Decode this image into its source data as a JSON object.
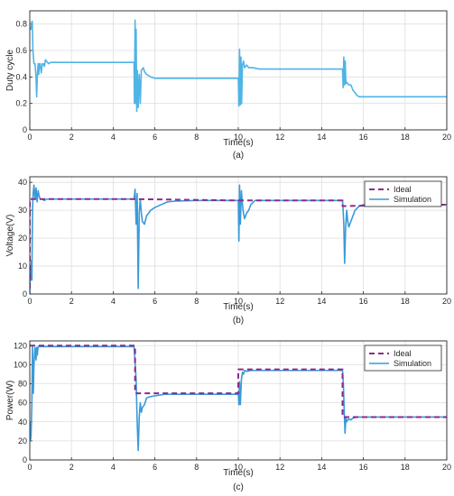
{
  "colors": {
    "simulation": "#3a9ad9",
    "duty": "#4fb4e6",
    "ideal": "#8b2a8b",
    "grid": "#dedede",
    "axis": "#262626"
  },
  "chart_data": [
    {
      "type": "line",
      "caption": "(a)",
      "xlabel": "Time(s)",
      "ylabel": "Duty cycle",
      "xlim": [
        0,
        20
      ],
      "ylim": [
        0,
        0.9
      ],
      "xticks": [
        "0",
        "2",
        "4",
        "6",
        "8",
        "10",
        "12",
        "14",
        "16",
        "18",
        "20"
      ],
      "yticks": [
        "0",
        "0.2",
        "0.4",
        "0.6",
        "0.8"
      ],
      "ytick_values": [
        0,
        0.2,
        0.4,
        0.6,
        0.8
      ],
      "grid": true,
      "legend": null,
      "series": [
        {
          "color_key": "duty",
          "dashed": false,
          "x": [
            0,
            0.05,
            0.1,
            0.12,
            0.15,
            0.2,
            0.25,
            0.3,
            0.33,
            0.36,
            0.4,
            0.43,
            0.46,
            0.5,
            0.55,
            0.6,
            0.65,
            0.7,
            0.75,
            0.8,
            0.9,
            1.0,
            1.2,
            1.5,
            2,
            3,
            4,
            5.0,
            5.02,
            5.05,
            5.08,
            5.1,
            5.13,
            5.16,
            5.2,
            5.25,
            5.3,
            5.35,
            5.4,
            5.45,
            5.5,
            5.6,
            5.7,
            5.8,
            6.0,
            6.3,
            6.5,
            7,
            8,
            9,
            10.0,
            10.03,
            10.06,
            10.1,
            10.13,
            10.16,
            10.2,
            10.25,
            10.3,
            10.4,
            10.5,
            10.7,
            11,
            11.5,
            12,
            13,
            14,
            15.0,
            15.03,
            15.06,
            15.1,
            15.13,
            15.16,
            15.2,
            15.3,
            15.4,
            15.5,
            15.6,
            15.7,
            15.8,
            16,
            16.5,
            17,
            18,
            19,
            20
          ],
          "y": [
            0.76,
            0.76,
            0.82,
            0.82,
            0.6,
            0.5,
            0.5,
            0.4,
            0.25,
            0.4,
            0.5,
            0.42,
            0.5,
            0.5,
            0.43,
            0.5,
            0.5,
            0.48,
            0.53,
            0.52,
            0.5,
            0.51,
            0.51,
            0.51,
            0.51,
            0.51,
            0.51,
            0.51,
            0.2,
            0.83,
            0.2,
            0.76,
            0.14,
            0.45,
            0.17,
            0.42,
            0.2,
            0.45,
            0.46,
            0.47,
            0.44,
            0.42,
            0.41,
            0.4,
            0.39,
            0.39,
            0.39,
            0.39,
            0.39,
            0.39,
            0.39,
            0.18,
            0.61,
            0.19,
            0.55,
            0.2,
            0.49,
            0.52,
            0.47,
            0.49,
            0.47,
            0.47,
            0.46,
            0.46,
            0.46,
            0.46,
            0.46,
            0.46,
            0.32,
            0.55,
            0.34,
            0.52,
            0.35,
            0.36,
            0.34,
            0.34,
            0.3,
            0.28,
            0.26,
            0.25,
            0.25,
            0.25,
            0.25,
            0.25,
            0.25,
            0.25
          ]
        }
      ]
    },
    {
      "type": "line",
      "caption": "(b)",
      "xlabel": "Time(s)",
      "ylabel": "Voltage(V)",
      "xlim": [
        0,
        20
      ],
      "ylim": [
        0,
        42
      ],
      "xticks": [
        "0",
        "2",
        "4",
        "6",
        "8",
        "10",
        "12",
        "14",
        "16",
        "18",
        "20"
      ],
      "yticks": [
        "0",
        "10",
        "20",
        "30",
        "40"
      ],
      "ytick_values": [
        0,
        10,
        20,
        30,
        40
      ],
      "grid": true,
      "legend": {
        "position": "top-right",
        "entries": [
          "Ideal",
          "Simulation"
        ]
      },
      "series": [
        {
          "name": "Ideal",
          "color_key": "ideal",
          "dashed": true,
          "x": [
            0,
            0,
            5.05,
            10,
            10,
            15,
            15,
            20
          ],
          "y": [
            2,
            34,
            34,
            33.5,
            33.5,
            33.5,
            31.5,
            32
          ]
        },
        {
          "name": "Simulation",
          "color_key": "simulation",
          "dashed": false,
          "x": [
            0,
            0.02,
            0.05,
            0.08,
            0.1,
            0.13,
            0.16,
            0.2,
            0.25,
            0.3,
            0.35,
            0.4,
            0.45,
            0.5,
            0.6,
            0.7,
            0.8,
            1.0,
            1.5,
            2,
            3,
            4,
            5.0,
            5.05,
            5.1,
            5.15,
            5.2,
            5.25,
            5.3,
            5.35,
            5.4,
            5.5,
            5.6,
            5.7,
            5.8,
            6.0,
            6.3,
            6.6,
            7,
            8,
            9,
            10.0,
            10.03,
            10.06,
            10.1,
            10.15,
            10.2,
            10.25,
            10.3,
            10.4,
            10.5,
            10.6,
            10.8,
            11,
            12,
            13,
            14,
            15.0,
            15.03,
            15.06,
            15.1,
            15.15,
            15.2,
            15.25,
            15.3,
            15.4,
            15.5,
            15.6,
            15.8,
            16,
            17,
            18,
            19,
            20
          ],
          "y": [
            0,
            10,
            5,
            12,
            5,
            30,
            36,
            39,
            34,
            38,
            33,
            37,
            35,
            34,
            34,
            33.5,
            34,
            34,
            34,
            34,
            34,
            34,
            34,
            37.5,
            25,
            36,
            2,
            29,
            34,
            29,
            26,
            25,
            28,
            29,
            30,
            31,
            32,
            33,
            33.3,
            33.5,
            33.5,
            33.5,
            19,
            39,
            25,
            37,
            32,
            29,
            27,
            29,
            30,
            32,
            33.5,
            33.5,
            33.5,
            33.5,
            33.5,
            33.5,
            30,
            25,
            11,
            24,
            30,
            26,
            24,
            26,
            28,
            30,
            31.5,
            32,
            32,
            32,
            32,
            32
          ]
        }
      ]
    },
    {
      "type": "line",
      "caption": "(c)",
      "xlabel": "Time(s)",
      "ylabel": "Power(W)",
      "xlim": [
        0,
        20
      ],
      "ylim": [
        0,
        125
      ],
      "xticks": [
        "0",
        "2",
        "4",
        "6",
        "8",
        "10",
        "12",
        "14",
        "16",
        "18",
        "20"
      ],
      "yticks": [
        "0",
        "20",
        "40",
        "60",
        "80",
        "100",
        "120"
      ],
      "ytick_values": [
        0,
        20,
        40,
        60,
        80,
        100,
        120
      ],
      "grid": true,
      "legend": {
        "position": "top-right",
        "entries": [
          "Ideal",
          "Simulation"
        ]
      },
      "series": [
        {
          "name": "Ideal",
          "color_key": "ideal",
          "dashed": true,
          "x": [
            0,
            5.05,
            5.05,
            10,
            10,
            15,
            15,
            20
          ],
          "y": [
            120,
            120,
            70,
            70,
            95,
            95,
            45,
            45
          ]
        },
        {
          "name": "Simulation",
          "color_key": "simulation",
          "dashed": false,
          "x": [
            0,
            0.03,
            0.06,
            0.1,
            0.13,
            0.17,
            0.2,
            0.25,
            0.3,
            0.33,
            0.36,
            0.4,
            0.45,
            0.5,
            0.6,
            0.8,
            1.0,
            2,
            3,
            4,
            5.0,
            5.1,
            5.15,
            5.2,
            5.25,
            5.3,
            5.35,
            5.4,
            5.5,
            5.6,
            5.7,
            5.9,
            6.2,
            6.5,
            7,
            8,
            9,
            10.0,
            10.03,
            10.06,
            10.1,
            10.15,
            10.2,
            10.25,
            10.3,
            10.4,
            10.6,
            10.8,
            11,
            12,
            13,
            14,
            15.0,
            15.04,
            15.08,
            15.12,
            15.16,
            15.2,
            15.25,
            15.3,
            15.4,
            15.5,
            15.7,
            16,
            17,
            18,
            19,
            20
          ],
          "y": [
            40,
            20,
            25,
            60,
            120,
            70,
            100,
            118,
            105,
            118,
            110,
            119,
            119,
            119,
            119,
            119,
            119,
            119,
            119,
            119,
            119,
            85,
            40,
            10,
            45,
            60,
            50,
            55,
            58,
            65,
            66,
            67,
            68,
            69,
            69,
            69,
            69,
            69,
            58,
            82,
            58,
            85,
            92,
            90,
            94,
            93,
            94,
            94,
            94,
            94,
            94,
            94,
            94,
            80,
            52,
            28,
            44,
            40,
            42,
            43,
            42,
            44,
            45,
            45,
            45,
            45,
            45,
            45
          ]
        }
      ]
    }
  ]
}
